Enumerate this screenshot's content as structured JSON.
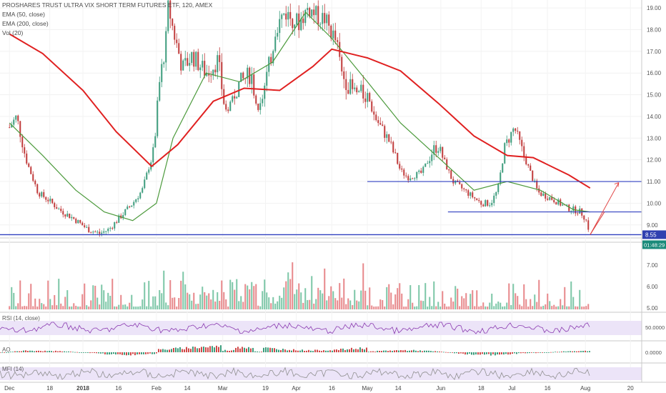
{
  "header": {
    "title": "PROSHARES TRUST ULTRA VIX SHORT TERM FUTURES ETF, 120, AMEX",
    "indicators": [
      "EMA (50, close)",
      "EMA (200, close)",
      "Vol (20)"
    ]
  },
  "panes": {
    "rsi_label": "RSI (14, close)",
    "ao_label": "AO",
    "mfi_label": "MFI (14)"
  },
  "badges": {
    "price": "8.55",
    "countdown": "01:48:29"
  },
  "colors": {
    "up": "#3c9c7c",
    "down": "#c03a3a",
    "ema50": "#4c9a3c",
    "ema200": "#e02020",
    "hline": "#3040c0",
    "arrow": "#e04040",
    "rsi": "#8a3ab0",
    "band": "#ece4f8",
    "mfi": "#909090",
    "badge_price": "#3040b0",
    "badge_time": "#1a8a7a"
  },
  "chart_data": [
    {
      "type": "line",
      "title": "PROSHARES TRUST ULTRA VIX SHORT TERM FUTURES ETF, 120, AMEX",
      "x_ticks": [
        "Dec",
        "18",
        "2018",
        "16",
        "Feb",
        "14",
        "Mar",
        "19",
        "Apr",
        "16",
        "May",
        "14",
        "Jun",
        "18",
        "Jul",
        "16",
        "Aug",
        "20"
      ],
      "y_ticks": [
        "19.00",
        "18.00",
        "17.00",
        "16.00",
        "15.00",
        "14.00",
        "13.00",
        "12.00",
        "11.00",
        "10.00",
        "9.00"
      ],
      "ylim": [
        8.4,
        19.3
      ],
      "series": [
        {
          "name": "Price",
          "x": [
            "2017-12-01",
            "2017-12-04",
            "2017-12-08",
            "2017-12-13",
            "2017-12-18",
            "2017-12-22",
            "2017-12-28",
            "2018-01-03",
            "2018-01-08",
            "2018-01-12",
            "2018-01-17",
            "2018-01-22",
            "2018-01-26",
            "2018-01-31",
            "2018-02-02",
            "2018-02-05",
            "2018-02-06",
            "2018-02-08",
            "2018-02-12",
            "2018-02-16",
            "2018-02-22",
            "2018-02-27",
            "2018-03-02",
            "2018-03-08",
            "2018-03-13",
            "2018-03-16",
            "2018-03-22",
            "2018-03-23",
            "2018-03-27",
            "2018-04-02",
            "2018-04-06",
            "2018-04-10",
            "2018-04-13",
            "2018-04-18",
            "2018-04-20",
            "2018-04-25",
            "2018-05-01",
            "2018-05-04",
            "2018-05-10",
            "2018-05-15",
            "2018-05-18",
            "2018-05-24",
            "2018-05-29",
            "2018-05-31",
            "2018-06-06",
            "2018-06-12",
            "2018-06-18",
            "2018-06-22",
            "2018-06-25",
            "2018-06-28",
            "2018-07-02",
            "2018-07-06",
            "2018-07-12",
            "2018-07-18",
            "2018-07-24",
            "2018-07-30",
            "2018-08-01",
            "2018-08-03"
          ],
          "values": [
            13.5,
            14.0,
            12.0,
            10.5,
            10.1,
            9.7,
            9.3,
            8.8,
            8.6,
            8.8,
            9.4,
            10.0,
            10.6,
            12.5,
            15.3,
            17.5,
            19.1,
            18.0,
            16.2,
            16.8,
            16.0,
            16.6,
            14.2,
            15.5,
            16.0,
            14.0,
            17.1,
            18.0,
            18.8,
            18.3,
            19.0,
            18.6,
            18.5,
            17.4,
            16.0,
            15.1,
            15.0,
            14.0,
            12.9,
            11.5,
            11.2,
            11.4,
            12.5,
            12.6,
            11.0,
            10.5,
            10.0,
            10.0,
            10.6,
            12.6,
            13.5,
            12.2,
            10.5,
            10.2,
            9.8,
            9.6,
            9.3,
            8.6
          ]
        },
        {
          "name": "EMA (50, close)",
          "x": [
            "2017-12-01",
            "2017-12-15",
            "2017-12-29",
            "2018-01-10",
            "2018-01-22",
            "2018-02-01",
            "2018-02-08",
            "2018-02-22",
            "2018-03-08",
            "2018-03-22",
            "2018-04-05",
            "2018-04-16",
            "2018-05-01",
            "2018-05-15",
            "2018-05-31",
            "2018-06-15",
            "2018-06-29",
            "2018-07-13",
            "2018-07-27",
            "2018-08-03"
          ],
          "values": [
            13.7,
            12.2,
            10.6,
            9.6,
            9.2,
            10.0,
            13.0,
            16.0,
            15.6,
            16.5,
            18.8,
            17.6,
            15.6,
            13.7,
            12.1,
            10.6,
            11.0,
            10.6,
            9.7,
            9.6
          ]
        },
        {
          "name": "EMA (200, close)",
          "x": [
            "2017-12-01",
            "2017-12-15",
            "2018-01-01",
            "2018-01-15",
            "2018-01-30",
            "2018-02-10",
            "2018-02-25",
            "2018-03-10",
            "2018-03-25",
            "2018-04-08",
            "2018-04-16",
            "2018-05-01",
            "2018-05-15",
            "2018-05-31",
            "2018-06-15",
            "2018-06-29",
            "2018-07-10",
            "2018-07-25",
            "2018-08-03"
          ],
          "values": [
            17.8,
            16.9,
            15.2,
            13.3,
            11.7,
            12.7,
            14.7,
            15.3,
            15.2,
            16.3,
            17.1,
            16.7,
            16.1,
            14.6,
            13.1,
            12.2,
            12.1,
            11.3,
            10.7
          ]
        }
      ]
    },
    {
      "type": "bar",
      "title": "Vol (20)",
      "y_ticks": [
        "7.00",
        "6.00",
        "5.00"
      ]
    },
    {
      "type": "line",
      "title": "RSI (14, close)",
      "y_ticks": [
        "50.0000"
      ]
    },
    {
      "type": "bar",
      "title": "AO",
      "y_ticks": [
        "0.0000"
      ]
    },
    {
      "type": "line",
      "title": "MFI (14)",
      "y_ticks": []
    }
  ]
}
